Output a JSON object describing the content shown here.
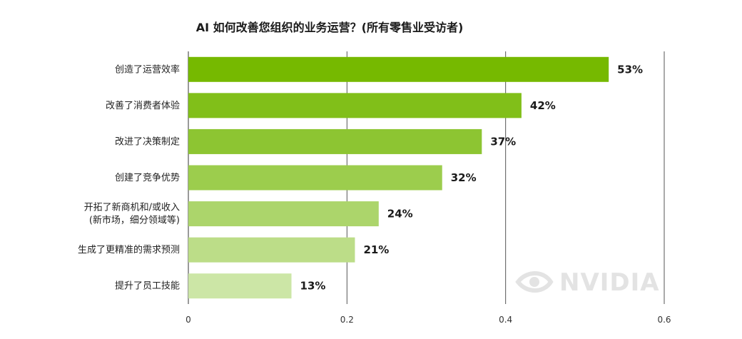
{
  "chart_data": {
    "type": "bar",
    "orientation": "horizontal",
    "title": "AI 如何改善您组织的业务运营？(所有零售业受访者)",
    "categories": [
      [
        "创造了运营效率"
      ],
      [
        "改善了消费者体验"
      ],
      [
        "改进了决策制定"
      ],
      [
        "创建了竞争优势"
      ],
      [
        "开拓了新商机和/或收入",
        "(新市场，细分领域等)"
      ],
      [
        "生成了更精准的需求预测"
      ],
      [
        "提升了员工技能"
      ]
    ],
    "values": [
      0.53,
      0.42,
      0.37,
      0.32,
      0.24,
      0.21,
      0.13
    ],
    "value_labels": [
      "53%",
      "42%",
      "37%",
      "32%",
      "24%",
      "21%",
      "13%"
    ],
    "xlim": [
      0,
      0.6
    ],
    "x_ticks": [
      "0",
      "0.2",
      "0.4",
      "0.6"
    ],
    "x_tick_values": [
      0,
      0.2,
      0.4,
      0.6
    ],
    "grid": "vertical",
    "bar_colors": [
      "#76b900",
      "#81bf19",
      "#8dc532",
      "#9ccd4d",
      "#acd56b",
      "#bcdd88",
      "#cce6a6"
    ],
    "watermark": "NVIDIA"
  }
}
